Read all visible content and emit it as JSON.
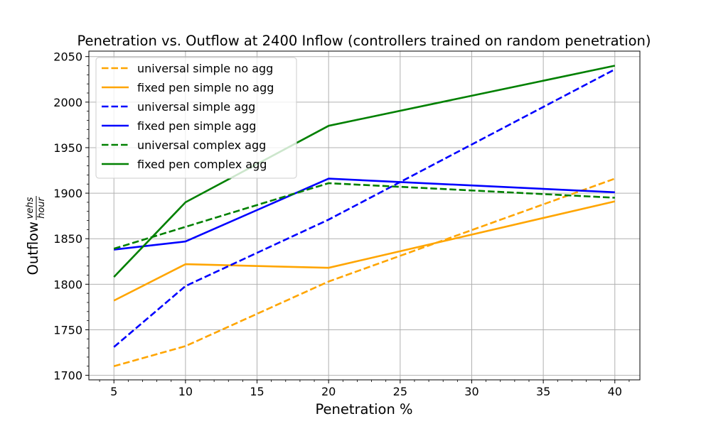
{
  "chart_data": {
    "type": "line",
    "title": "Penetration vs. Outflow at 2400 Inflow (controllers trained on random penetration)",
    "xlabel": "Penetration %",
    "ylabel": "Outflow",
    "ylabel_unit_numerator": "vehs",
    "ylabel_unit_denominator": "hour",
    "xlim": [
      3.25,
      41.75
    ],
    "ylim": [
      1695,
      2056
    ],
    "xticks": [
      5,
      10,
      15,
      20,
      25,
      30,
      35,
      40
    ],
    "yticks": [
      1700,
      1750,
      1800,
      1850,
      1900,
      1950,
      2000,
      2050
    ],
    "x_minor_step": 1,
    "y_minor_step": 10,
    "grid": true,
    "legend_position": "upper-left",
    "x": [
      5,
      10,
      20,
      40
    ],
    "series": [
      {
        "name": "universal simple no agg",
        "color": "#ffa500",
        "dashed": true,
        "values": [
          1710,
          1732,
          1803,
          1916
        ]
      },
      {
        "name": "fixed pen simple no agg",
        "color": "#ffa500",
        "dashed": false,
        "values": [
          1782,
          1822,
          1818,
          1891
        ]
      },
      {
        "name": "universal simple agg",
        "color": "#0000ff",
        "dashed": true,
        "values": [
          1731,
          1798,
          1871,
          2036
        ]
      },
      {
        "name": "fixed pen simple agg",
        "color": "#0000ff",
        "dashed": false,
        "values": [
          1838,
          1847,
          1916,
          1901
        ]
      },
      {
        "name": "universal complex agg",
        "color": "#008000",
        "dashed": true,
        "values": [
          1839,
          1863,
          1911,
          1895
        ]
      },
      {
        "name": "fixed pen complex agg",
        "color": "#008000",
        "dashed": false,
        "values": [
          1808,
          1890,
          1974,
          2040
        ]
      }
    ]
  }
}
